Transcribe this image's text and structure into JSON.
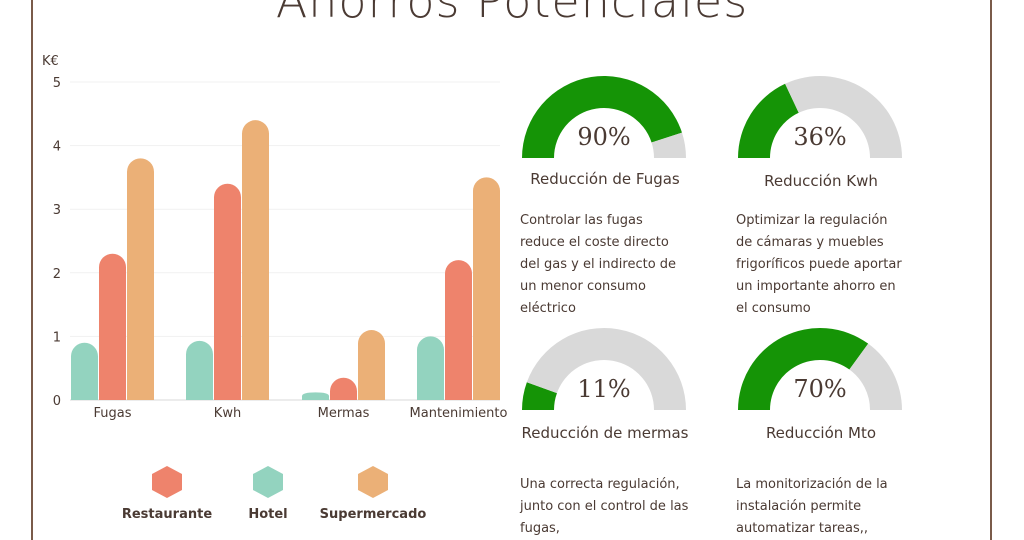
{
  "page": {
    "title": "Ahorros Potenciales"
  },
  "chart_data": {
    "type": "bar",
    "ylabel": "K€",
    "ylim": [
      0,
      5
    ],
    "yticks": [
      "0",
      "1",
      "2",
      "3",
      "4",
      "5"
    ],
    "categories": [
      "Fugas",
      "Kwh",
      "Mermas",
      "Mantenimiento"
    ],
    "series": [
      {
        "name": "Hotel",
        "color": "#93d3bf",
        "values": [
          0.9,
          0.93,
          0.12,
          1.0
        ]
      },
      {
        "name": "Restaurante",
        "color": "#ee836c",
        "values": [
          2.3,
          3.4,
          0.35,
          2.2
        ]
      },
      {
        "name": "Supermercado",
        "color": "#ebb077",
        "values": [
          3.8,
          4.4,
          1.1,
          3.5
        ]
      }
    ],
    "legend": [
      "Restaurante",
      "Hotel",
      "Supermercado"
    ],
    "legend_position": "bottom",
    "grid": true
  },
  "legend": {
    "items": [
      {
        "label": "Restaurante",
        "color": "#ee836c"
      },
      {
        "label": "Hotel",
        "color": "#93d3bf"
      },
      {
        "label": "Supermercado",
        "color": "#ebb077"
      }
    ]
  },
  "gauges": [
    {
      "percent": 90,
      "label": "90%",
      "title": "Reducción de Fugas",
      "description": "Controlar las fugas reduce el coste directo del gas y el indirecto de un menor consumo eléctrico"
    },
    {
      "percent": 36,
      "label": "36%",
      "title": "Reducción Kwh",
      "description": "Optimizar la regulación de cámaras y muebles frigoríficos puede aportar un importante ahorro en el consumo"
    },
    {
      "percent": 11,
      "label": "11%",
      "title": "Reducción de mermas",
      "description": "Una correcta regulación, junto con el control de las fugas,"
    },
    {
      "percent": 70,
      "label": "70%",
      "title": "Reducción Mto",
      "description": "La monitorización de la instalación permite automatizar tareas,,"
    }
  ],
  "colors": {
    "gauge_fill": "#159406",
    "gauge_track": "#d9d9d9",
    "text": "#4a3a33",
    "frame": "#7a5b4a"
  }
}
